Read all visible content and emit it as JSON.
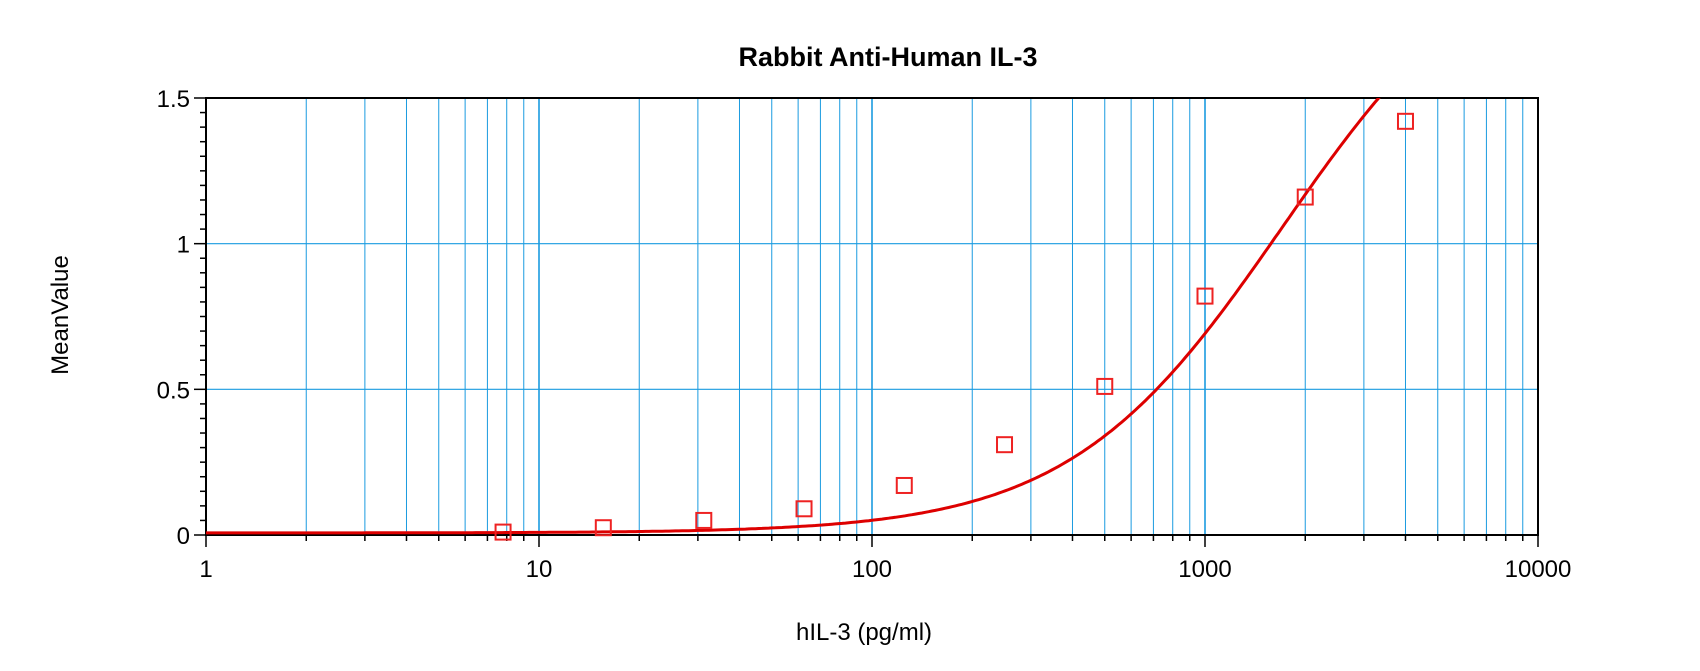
{
  "chart_data": {
    "type": "scatter",
    "title": "Rabbit Anti-Human IL-3",
    "xlabel": "hIL-3 (pg/ml)",
    "ylabel": "MeanValue",
    "x_scale": "log",
    "xlim": [
      1,
      10000
    ],
    "ylim": [
      0,
      1.5
    ],
    "x_ticks": [
      {
        "value": 1,
        "label": "1"
      },
      {
        "value": 10,
        "label": "10"
      },
      {
        "value": 100,
        "label": "100"
      },
      {
        "value": 1000,
        "label": "1000"
      },
      {
        "value": 10000,
        "label": "10000"
      }
    ],
    "y_ticks": [
      {
        "value": 0,
        "label": "0"
      },
      {
        "value": 0.5,
        "label": "0.5"
      },
      {
        "value": 1,
        "label": "1"
      },
      {
        "value": 1.5,
        "label": "1.5"
      }
    ],
    "grid": true,
    "series": [
      {
        "marker": "open-square",
        "x": [
          7.8,
          15.6,
          31.25,
          62.5,
          125,
          250,
          500,
          1000,
          2000,
          4000
        ],
        "y": [
          0.01,
          0.025,
          0.05,
          0.09,
          0.17,
          0.31,
          0.51,
          0.82,
          1.16,
          1.42
        ]
      }
    ],
    "fit_curve": {
      "type": "4PL",
      "A": 0.007,
      "B": 1.36,
      "C": 1700,
      "D": 2.1
    },
    "colors": {
      "grid": "#1a9be0",
      "curve": "#dd0000",
      "marker": "#ee2222",
      "axis": "#000000"
    }
  }
}
